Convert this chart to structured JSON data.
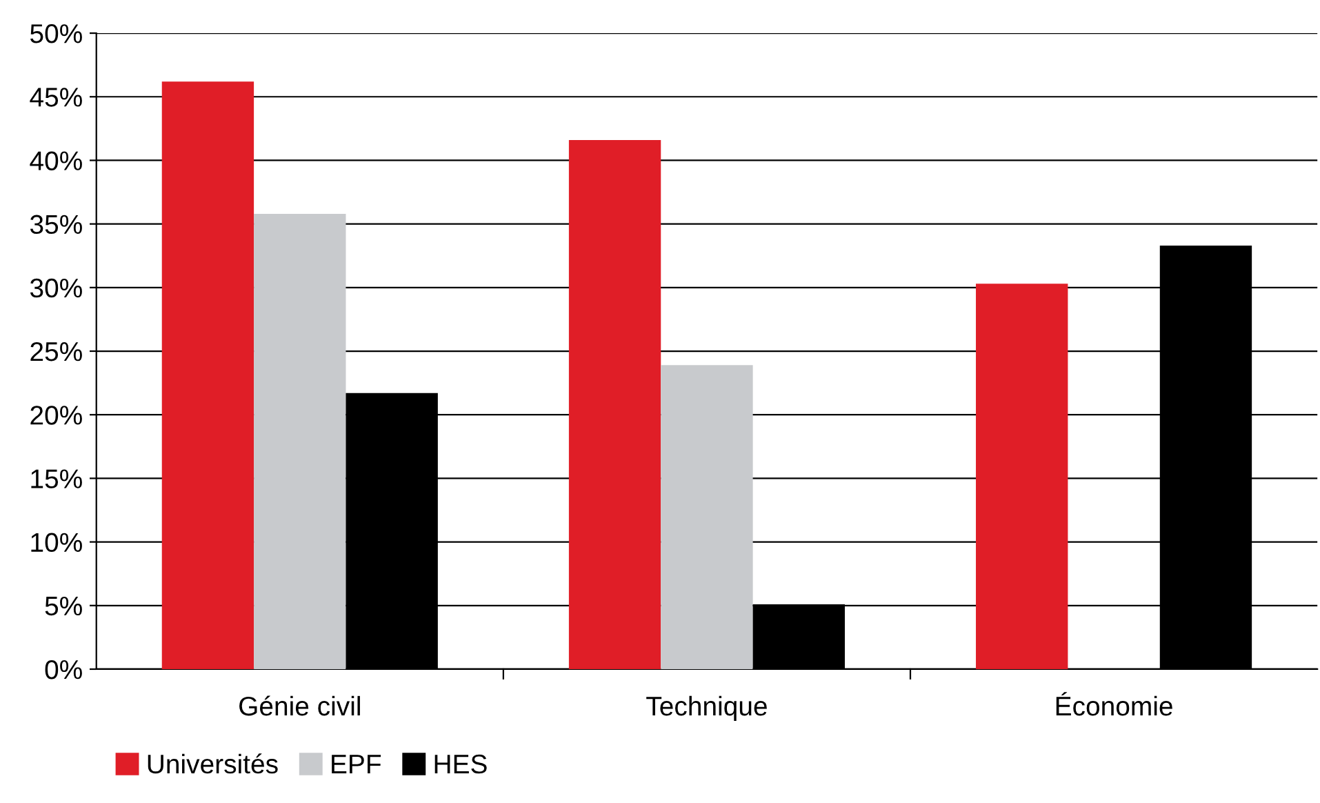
{
  "chart_data": {
    "type": "bar",
    "categories": [
      "Génie civil",
      "Technique",
      "Économie"
    ],
    "series": [
      {
        "name": "Universités",
        "color": "#e01e27",
        "values": [
          46.2,
          41.6,
          30.3
        ]
      },
      {
        "name": "EPF",
        "color": "#c8cacd",
        "values": [
          35.8,
          23.9,
          null
        ]
      },
      {
        "name": "HES",
        "color": "#000000",
        "values": [
          21.7,
          5.1,
          33.3
        ]
      }
    ],
    "ylim": [
      0,
      50
    ],
    "yticks": [
      {
        "value": 0,
        "label": "0%"
      },
      {
        "value": 5,
        "label": "5%"
      },
      {
        "value": 10,
        "label": "10%"
      },
      {
        "value": 15,
        "label": "15%"
      },
      {
        "value": 20,
        "label": "20%"
      },
      {
        "value": 25,
        "label": "25%"
      },
      {
        "value": 30,
        "label": "30%"
      },
      {
        "value": 35,
        "label": "35%"
      },
      {
        "value": 40,
        "label": "40%"
      },
      {
        "value": 45,
        "label": "45%"
      },
      {
        "value": 50,
        "label": "50%"
      }
    ],
    "grid": "y",
    "legend": "bottom left"
  }
}
